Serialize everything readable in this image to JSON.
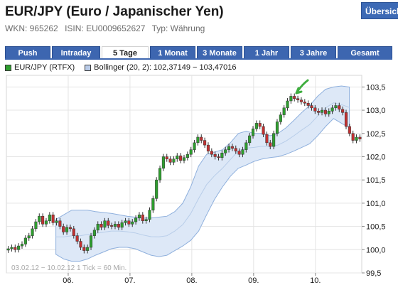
{
  "header": {
    "title": "EUR/JPY (Euro / Japanischer Yen)",
    "overview_button": "Übersicht",
    "wkn": "WKN: 965262",
    "isin": "ISIN: EU0009652627",
    "type": "Typ: Währung"
  },
  "tabs": [
    {
      "label": "Push",
      "active": false
    },
    {
      "label": "Intraday",
      "active": false
    },
    {
      "label": "5 Tage",
      "active": true
    },
    {
      "label": "1 Monat",
      "active": false
    },
    {
      "label": "3 Monate",
      "active": false
    },
    {
      "label": "1 Jahr",
      "active": false
    },
    {
      "label": "3 Jahre",
      "active": false
    },
    {
      "label": "Gesamt",
      "active": false
    }
  ],
  "colors": {
    "tab": "#3d66b0",
    "candle_up": "#2e9e2e",
    "candle_down": "#c23030",
    "band_fill": "#dde8f7",
    "band_line": "#8fb0dd",
    "arrow": "#3fae3f"
  },
  "chart_data": {
    "type": "candlestick",
    "legend": [
      {
        "label": "EUR/JPY (RTFX)",
        "color": "#2e9e2e"
      },
      {
        "label": "Bollinger (20, 2): 102,37149 − 103,47016",
        "color": "#b9cbe8"
      }
    ],
    "y_ticks": [
      "103,5",
      "103,0",
      "102,5",
      "102,0",
      "101,5",
      "101,0",
      "100,5",
      "100,0",
      "99,5"
    ],
    "y_tick_values": [
      103.5,
      103.0,
      102.5,
      102.0,
      101.5,
      101.0,
      100.5,
      100.0,
      99.5
    ],
    "ylim": [
      99.5,
      103.75
    ],
    "x_ticks": [
      "06.",
      "07.",
      "08.",
      "09.",
      "10."
    ],
    "x_tick_positions": [
      1.0,
      2.0,
      3.0,
      4.0,
      5.0
    ],
    "xlim": [
      0.0,
      5.75
    ],
    "grid": true,
    "legend_position": "top-left",
    "footnote": "03.02.12 − 10.02.12    1 Tick = 60 Min.",
    "annotation": "green arrow above the high at day 10 morning",
    "closes": [
      100.02,
      100.05,
      100.0,
      100.08,
      100.12,
      100.25,
      100.3,
      100.45,
      100.6,
      100.72,
      100.55,
      100.62,
      100.75,
      100.58,
      100.62,
      100.5,
      100.38,
      100.48,
      100.45,
      100.3,
      100.18,
      100.05,
      99.98,
      100.05,
      100.3,
      100.42,
      100.55,
      100.48,
      100.62,
      100.52,
      100.5,
      100.55,
      100.48,
      100.58,
      100.62,
      100.55,
      100.6,
      100.68,
      100.75,
      100.62,
      100.65,
      100.85,
      101.1,
      101.5,
      101.75,
      102.0,
      101.95,
      101.88,
      101.95,
      102.02,
      101.92,
      101.98,
      102.05,
      102.15,
      102.3,
      102.42,
      102.35,
      102.25,
      102.12,
      102.05,
      102.0,
      101.98,
      102.08,
      102.15,
      102.22,
      102.18,
      102.12,
      102.05,
      102.15,
      102.3,
      102.45,
      102.6,
      102.72,
      102.65,
      102.48,
      102.3,
      102.22,
      102.5,
      102.75,
      102.9,
      103.05,
      103.2,
      103.3,
      103.25,
      103.22,
      103.18,
      103.15,
      103.1,
      103.05,
      102.98,
      102.95,
      103.0,
      102.92,
      102.98,
      103.05,
      103.1,
      103.02,
      102.95,
      102.65,
      102.5,
      102.35,
      102.42,
      102.38
    ],
    "bollinger_upper": [
      100.65,
      100.75,
      100.85,
      100.85,
      100.85,
      100.82,
      100.8,
      100.78,
      100.75,
      100.72,
      100.7,
      100.68,
      100.68,
      100.7,
      100.72,
      100.82,
      101.0,
      101.35,
      101.8,
      102.05,
      102.1,
      102.15,
      102.3,
      102.5,
      102.55,
      102.5,
      102.5,
      102.45,
      102.5,
      102.62,
      102.78,
      102.95,
      103.1,
      103.3,
      103.45,
      103.5,
      103.52,
      103.5
    ],
    "bollinger_lower": [
      99.9,
      99.8,
      99.75,
      99.75,
      99.8,
      99.88,
      99.95,
      100.02,
      100.05,
      100.05,
      100.02,
      99.95,
      99.88,
      99.85,
      99.88,
      99.98,
      100.08,
      100.2,
      100.4,
      100.75,
      101.08,
      101.35,
      101.58,
      101.75,
      101.82,
      101.9,
      101.95,
      101.98,
      102.0,
      102.05,
      102.12,
      102.2,
      102.28,
      102.45,
      102.65,
      102.82,
      102.72,
      102.62
    ]
  }
}
